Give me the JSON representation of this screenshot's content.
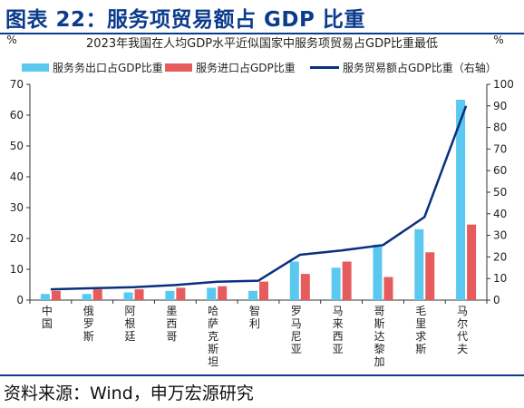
{
  "figure_title": "图表 22：服务项贸易额占 GDP 比重",
  "source": "资料来源：Wind，申万宏源研究",
  "chart_data": {
    "type": "bar",
    "title": "2023年我国在人均GDP水平近似国家中服务项贸易占GDP比重最低",
    "left_unit": "%",
    "right_unit": "%",
    "categories": [
      "中国",
      "俄罗斯",
      "阿根廷",
      "墨西哥",
      "哈萨克斯坦",
      "智利",
      "罗马尼亚",
      "马来西亚",
      "哥斯达黎加",
      "毛里求斯",
      "马尔代夫"
    ],
    "left_axis": {
      "min": 0,
      "max": 70,
      "ticks": [
        "0",
        "10",
        "20",
        "30",
        "40",
        "50",
        "60",
        "70"
      ]
    },
    "right_axis": {
      "min": 0,
      "max": 100,
      "ticks": [
        "0",
        "10",
        "20",
        "30",
        "40",
        "50",
        "60",
        "70",
        "80",
        "90",
        "100"
      ]
    },
    "series": [
      {
        "name": "服务务出口占GDP比重",
        "axis": "left",
        "type": "bar",
        "color": "#5bc8f0",
        "values": [
          2.0,
          2.0,
          2.5,
          3.0,
          4.0,
          3.0,
          12.5,
          10.5,
          18.0,
          23.0,
          65.0
        ]
      },
      {
        "name": "服务进口占GDP比重",
        "axis": "left",
        "type": "bar",
        "color": "#e65c5c",
        "values": [
          3.0,
          3.5,
          3.5,
          4.0,
          4.5,
          6.0,
          8.5,
          12.5,
          7.5,
          15.5,
          24.5
        ]
      },
      {
        "name": "服务贸易额占GDP比重（右轴）",
        "axis": "right",
        "type": "line",
        "color": "#0b2f7f",
        "values": [
          5.0,
          5.5,
          6.0,
          7.0,
          8.5,
          9.0,
          21.0,
          23.0,
          25.5,
          38.5,
          90.0
        ]
      }
    ],
    "legend_position": "top",
    "grid": false
  }
}
